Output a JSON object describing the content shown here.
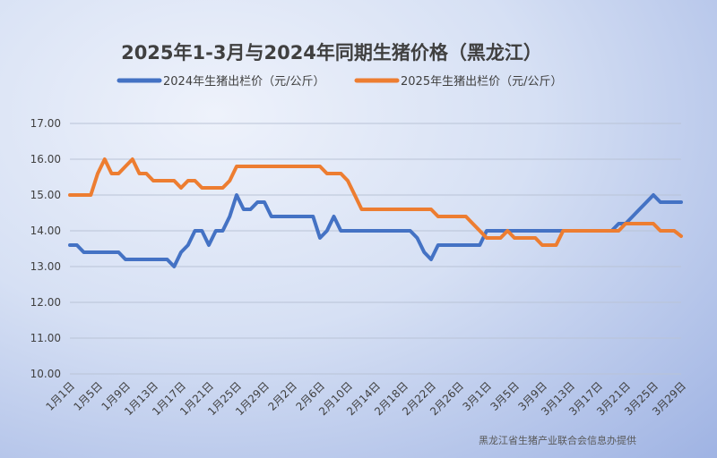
{
  "chart_data": {
    "type": "line",
    "title": "2025年1-3月与2024年同期生猪价格（黑龙江）",
    "source": "黑龙江省生猪产业联合会信息办提供",
    "ylim": [
      10,
      17
    ],
    "yticks": [
      "10.00",
      "11.00",
      "12.00",
      "13.00",
      "14.00",
      "15.00",
      "16.00",
      "17.00"
    ],
    "grid": true,
    "legend_position": "top",
    "x_categories": [
      "1月1日",
      "1月5日",
      "1月9日",
      "1月13日",
      "1月17日",
      "1月21日",
      "1月25日",
      "1月29日",
      "2月2日",
      "2月6日",
      "2月10日",
      "2月14日",
      "2月18日",
      "2月22日",
      "2月26日",
      "3月1日",
      "3月5日",
      "3月9日",
      "3月13日",
      "3月17日",
      "3月21日",
      "3月25日",
      "3月29日"
    ],
    "day_count": 89,
    "series": [
      {
        "name": "2024年生猪出栏价（元/公斤）",
        "color": "#4472C4",
        "points": [
          [
            1,
            13.6
          ],
          [
            2,
            13.6
          ],
          [
            3,
            13.4
          ],
          [
            8,
            13.4
          ],
          [
            9,
            13.2
          ],
          [
            15,
            13.2
          ],
          [
            16,
            13.0
          ],
          [
            17,
            13.4
          ],
          [
            18,
            13.6
          ],
          [
            19,
            14.0
          ],
          [
            20,
            14.0
          ],
          [
            21,
            13.6
          ],
          [
            22,
            14.0
          ],
          [
            23,
            14.0
          ],
          [
            24,
            14.4
          ],
          [
            25,
            15.0
          ],
          [
            26,
            14.6
          ],
          [
            27,
            14.6
          ],
          [
            28,
            14.8
          ],
          [
            29,
            14.8
          ],
          [
            30,
            14.4
          ],
          [
            36,
            14.4
          ],
          [
            37,
            13.8
          ],
          [
            38,
            14.0
          ],
          [
            39,
            14.4
          ],
          [
            40,
            14.0
          ],
          [
            50,
            14.0
          ],
          [
            51,
            13.8
          ],
          [
            52,
            13.4
          ],
          [
            53,
            13.2
          ],
          [
            54,
            13.6
          ],
          [
            60,
            13.6
          ],
          [
            61,
            14.0
          ],
          [
            79,
            14.0
          ],
          [
            80,
            14.2
          ],
          [
            81,
            14.2
          ],
          [
            82,
            14.4
          ],
          [
            83,
            14.6
          ],
          [
            84,
            14.8
          ],
          [
            85,
            15.0
          ],
          [
            86,
            14.8
          ],
          [
            89,
            14.8
          ]
        ]
      },
      {
        "name": "2025年生猪出栏价（元/公斤）",
        "color": "#ED7D31",
        "points": [
          [
            1,
            15.0
          ],
          [
            4,
            15.0
          ],
          [
            5,
            15.6
          ],
          [
            6,
            16.0
          ],
          [
            7,
            15.6
          ],
          [
            8,
            15.6
          ],
          [
            9,
            15.8
          ],
          [
            10,
            16.0
          ],
          [
            11,
            15.6
          ],
          [
            12,
            15.6
          ],
          [
            13,
            15.4
          ],
          [
            16,
            15.4
          ],
          [
            17,
            15.2
          ],
          [
            18,
            15.4
          ],
          [
            19,
            15.4
          ],
          [
            20,
            15.2
          ],
          [
            23,
            15.2
          ],
          [
            24,
            15.4
          ],
          [
            25,
            15.8
          ],
          [
            37,
            15.8
          ],
          [
            38,
            15.6
          ],
          [
            40,
            15.6
          ],
          [
            41,
            15.4
          ],
          [
            42,
            15.0
          ],
          [
            43,
            14.6
          ],
          [
            53,
            14.6
          ],
          [
            54,
            14.4
          ],
          [
            58,
            14.4
          ],
          [
            59,
            14.2
          ],
          [
            60,
            14.0
          ],
          [
            61,
            13.8
          ],
          [
            63,
            13.8
          ],
          [
            64,
            14.0
          ],
          [
            65,
            13.8
          ],
          [
            68,
            13.8
          ],
          [
            69,
            13.6
          ],
          [
            71,
            13.6
          ],
          [
            72,
            14.0
          ],
          [
            80,
            14.0
          ],
          [
            81,
            14.2
          ],
          [
            85,
            14.2
          ],
          [
            86,
            14.0
          ],
          [
            88,
            14.0
          ],
          [
            89,
            13.85
          ]
        ]
      }
    ]
  }
}
